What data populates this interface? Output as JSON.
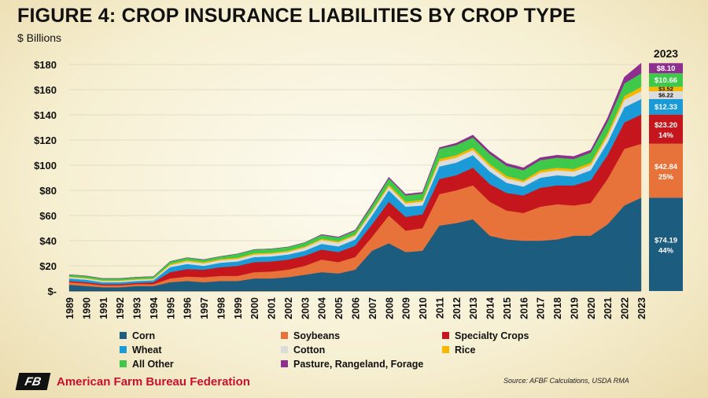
{
  "chart_data": {
    "type": "area",
    "title": "FIGURE 4: CROP INSURANCE LIABILITIES BY CROP TYPE",
    "ylabel": "$ Billions",
    "ylim": [
      0,
      180
    ],
    "yticks": [
      0,
      20,
      40,
      60,
      80,
      100,
      120,
      140,
      160,
      180
    ],
    "ytick_labels": [
      "$-",
      "$20",
      "$40",
      "$60",
      "$80",
      "$100",
      "$120",
      "$140",
      "$160",
      "$180"
    ],
    "x": [
      "1989",
      "1990",
      "1991",
      "1992",
      "1993",
      "1994",
      "1995",
      "1996",
      "1997",
      "1998",
      "1999",
      "2000",
      "2001",
      "2002",
      "2003",
      "2004",
      "2005",
      "2006",
      "2007",
      "2008",
      "2009",
      "2010",
      "2011",
      "2012",
      "2013",
      "2014",
      "2015",
      "2016",
      "2017",
      "2018",
      "2019",
      "2020",
      "2021",
      "2022",
      "2023"
    ],
    "stacked": true,
    "series": [
      {
        "name": "Corn",
        "color": "#1c5c7e",
        "values": [
          5,
          4,
          3,
          3,
          4,
          4,
          7,
          8,
          7,
          8,
          8,
          10,
          10,
          11,
          13,
          15,
          14,
          17,
          32,
          38,
          31,
          32,
          52,
          54,
          57,
          44,
          41,
          40,
          40,
          41,
          44,
          44,
          53,
          68,
          74.19
        ]
      },
      {
        "name": "Soybeans",
        "color": "#e8733a",
        "values": [
          2,
          2,
          1.5,
          1.5,
          1.5,
          1.5,
          3,
          3.5,
          4,
          4,
          4,
          5,
          5.5,
          6,
          7,
          10,
          9,
          10,
          11,
          22,
          17,
          18,
          25,
          26,
          27,
          27,
          23,
          22,
          27,
          28,
          24,
          26,
          36,
          45,
          42.84
        ]
      },
      {
        "name": "Specialty Crops",
        "color": "#c4161c",
        "values": [
          1,
          1,
          1,
          1,
          1,
          1.5,
          5,
          6,
          6,
          7,
          8,
          8,
          8,
          8,
          8,
          8,
          8,
          9,
          10,
          11,
          11,
          11,
          12,
          12,
          14,
          14,
          14,
          14,
          15,
          15,
          16,
          18,
          19,
          21,
          23.2
        ]
      },
      {
        "name": "Wheat",
        "color": "#1a9ad6",
        "values": [
          2,
          2,
          1.5,
          1.5,
          1.5,
          1.5,
          4,
          4,
          3,
          3.5,
          3.5,
          4,
          4,
          4,
          4,
          4.5,
          4.5,
          5,
          7,
          9,
          8,
          7,
          10,
          10,
          10,
          10,
          8,
          7,
          8,
          8,
          7,
          8,
          10,
          12,
          12.33
        ]
      },
      {
        "name": "Cotton",
        "color": "#dcdcdc",
        "values": [
          1,
          1,
          1,
          1,
          1,
          1,
          1.5,
          2,
          2,
          2,
          2,
          2,
          2,
          2,
          2.5,
          3,
          3,
          3,
          3,
          3,
          2.5,
          3,
          4,
          4,
          4,
          4,
          3.5,
          3.5,
          4,
          4,
          4,
          4,
          5,
          6,
          6.22
        ]
      },
      {
        "name": "Rice",
        "color": "#f5b700",
        "values": [
          0.5,
          0.5,
          0.5,
          0.5,
          0.5,
          0.5,
          1,
          1,
          1,
          1,
          1,
          1,
          1,
          1,
          1,
          1,
          1,
          1,
          1,
          1.5,
          1.5,
          1.5,
          2,
          2,
          2,
          2,
          2,
          1.5,
          2,
          2,
          2,
          2,
          2.5,
          3,
          3.52
        ]
      },
      {
        "name": "All Other",
        "color": "#3ec94a",
        "values": [
          1.5,
          1.5,
          1.5,
          1.5,
          1.5,
          1.5,
          2,
          2,
          2,
          2,
          3,
          3,
          3,
          3,
          3,
          3,
          3,
          3,
          4,
          5,
          5,
          5,
          8,
          8,
          8,
          8,
          8,
          8,
          8,
          8,
          8,
          8,
          9,
          10,
          10.66
        ]
      },
      {
        "name": "Pasture, Rangeland, Forage",
        "color": "#8e2e8e",
        "values": [
          0,
          0,
          0,
          0,
          0,
          0,
          0,
          0,
          0,
          0,
          0,
          0,
          0,
          0,
          0,
          0.5,
          0.5,
          0.5,
          1,
          1,
          1,
          1,
          1,
          1.5,
          2,
          2,
          2,
          2,
          2,
          2,
          2,
          2,
          3,
          5,
          8.1
        ]
      }
    ],
    "side_bar": {
      "year": "2023",
      "labels": [
        {
          "series": "Corn",
          "value": "$74.19",
          "pct": "44%"
        },
        {
          "series": "Soybeans",
          "value": "$42.84",
          "pct": "25%"
        },
        {
          "series": "Specialty Crops",
          "value": "$23.20",
          "pct": "14%"
        },
        {
          "series": "Wheat",
          "value": "$12.33",
          "pct": ""
        },
        {
          "series": "Cotton",
          "value": "$6.22",
          "pct": ""
        },
        {
          "series": "Rice",
          "value": "$3.52",
          "pct": ""
        },
        {
          "series": "All Other",
          "value": "$10.66",
          "pct": ""
        },
        {
          "series": "Pasture, Rangeland, Forage",
          "value": "$8.10",
          "pct": ""
        }
      ]
    },
    "legend_position": "bottom",
    "grid": true
  },
  "footer": {
    "logo_mark": "FB",
    "org_name": "American Farm Bureau Federation",
    "source": "Source: AFBF Calculations, USDA RMA"
  }
}
